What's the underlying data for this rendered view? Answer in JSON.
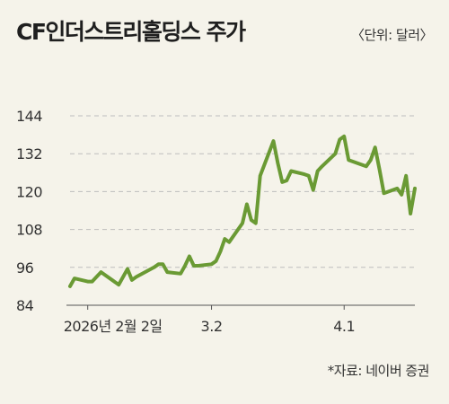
{
  "header": {
    "title": "CF인더스트리홀딩스 주가",
    "unit_note": "〈단위: 달러〉"
  },
  "footer": {
    "source": "*자료: 네이버 증권"
  },
  "colors": {
    "background": "#f5f3ea",
    "line": "#6a9a34",
    "grid": "#bdbdbd",
    "axis": "#555555"
  },
  "chart_data": {
    "type": "line",
    "title": "CF인더스트리홀딩스 주가",
    "xlabel": "",
    "ylabel": "",
    "ylim": [
      84,
      144
    ],
    "yticks": [
      84,
      96,
      108,
      120,
      132,
      144
    ],
    "xticks": [
      {
        "x": "2026-02-02",
        "label": "2026년 2월 2일"
      },
      {
        "x": "2026-03-02",
        "label": "3.2"
      },
      {
        "x": "2026-04-01",
        "label": "4.1"
      }
    ],
    "grid": "horizontal dashed",
    "series": [
      {
        "x": [
          "2026-01-29",
          "2026-01-30",
          "2026-02-02",
          "2026-02-03",
          "2026-02-04",
          "2026-02-05",
          "2026-02-06",
          "2026-02-09",
          "2026-02-10",
          "2026-02-11",
          "2026-02-12",
          "2026-02-13",
          "2026-02-17",
          "2026-02-18",
          "2026-02-19",
          "2026-02-20",
          "2026-02-23",
          "2026-02-24",
          "2026-02-25",
          "2026-02-26",
          "2026-02-27",
          "2026-03-02",
          "2026-03-03",
          "2026-03-04",
          "2026-03-05",
          "2026-03-06",
          "2026-03-09",
          "2026-03-10",
          "2026-03-11",
          "2026-03-12",
          "2026-03-13",
          "2026-03-16",
          "2026-03-17",
          "2026-03-18",
          "2026-03-19",
          "2026-03-20",
          "2026-03-23",
          "2026-03-24",
          "2026-03-25",
          "2026-03-26",
          "2026-03-27",
          "2026-03-30",
          "2026-03-31",
          "2026-04-01",
          "2026-04-02",
          "2026-04-06",
          "2026-04-07",
          "2026-04-08",
          "2026-04-09",
          "2026-04-10",
          "2026-04-13",
          "2026-04-14",
          "2026-04-15",
          "2026-04-16",
          "2026-04-17"
        ],
        "values": [
          90,
          92.5,
          91.5,
          91.5,
          93,
          94.5,
          93.5,
          90.5,
          93,
          95.5,
          92,
          93,
          96,
          97,
          97,
          94.5,
          94,
          96.5,
          99.5,
          96.5,
          96.5,
          97,
          98,
          101,
          105,
          104,
          110,
          116,
          111,
          110,
          125,
          136,
          129,
          123,
          123.5,
          126.5,
          125.5,
          125,
          120.5,
          126.5,
          128,
          132,
          136.5,
          137.5,
          130,
          128,
          130,
          134,
          127,
          119.5,
          121,
          119,
          125,
          113,
          121
        ]
      }
    ]
  }
}
